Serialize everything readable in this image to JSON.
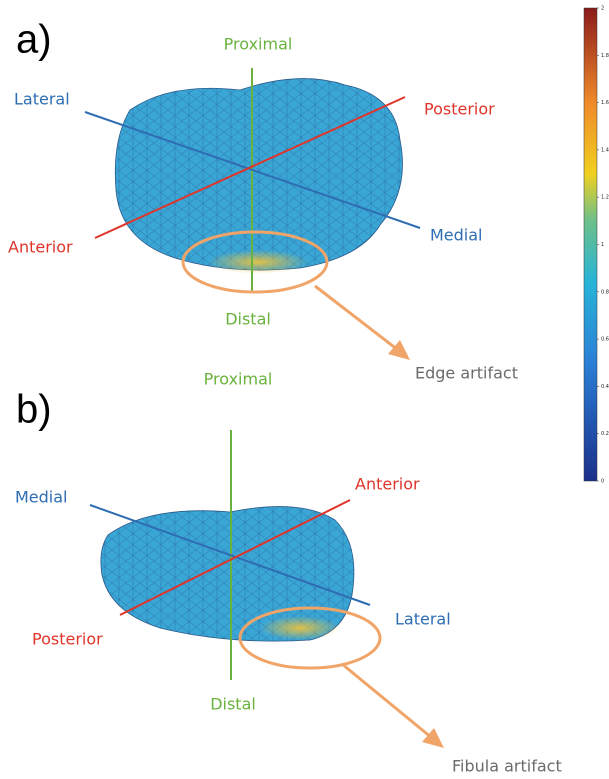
{
  "panels": [
    {
      "label": "a)",
      "proximal": "Proximal",
      "distal": "Distal",
      "lateral": "Lateral",
      "medial": "Medial",
      "anterior": "Anterior",
      "posterior": "Posterior",
      "annotation": "Edge artifact"
    },
    {
      "label": "b)",
      "proximal": "Proximal",
      "distal": "Distal",
      "lateral": "Lateral",
      "medial": "Medial",
      "anterior": "Anterior",
      "posterior": "Posterior",
      "annotation": "Fibula artifact"
    }
  ],
  "colorbar": {
    "range": [
      0,
      2
    ],
    "ticks": [
      0,
      0.2,
      0.4,
      0.6,
      0.8,
      1,
      1.2,
      1.4,
      1.6,
      1.8,
      2
    ]
  }
}
